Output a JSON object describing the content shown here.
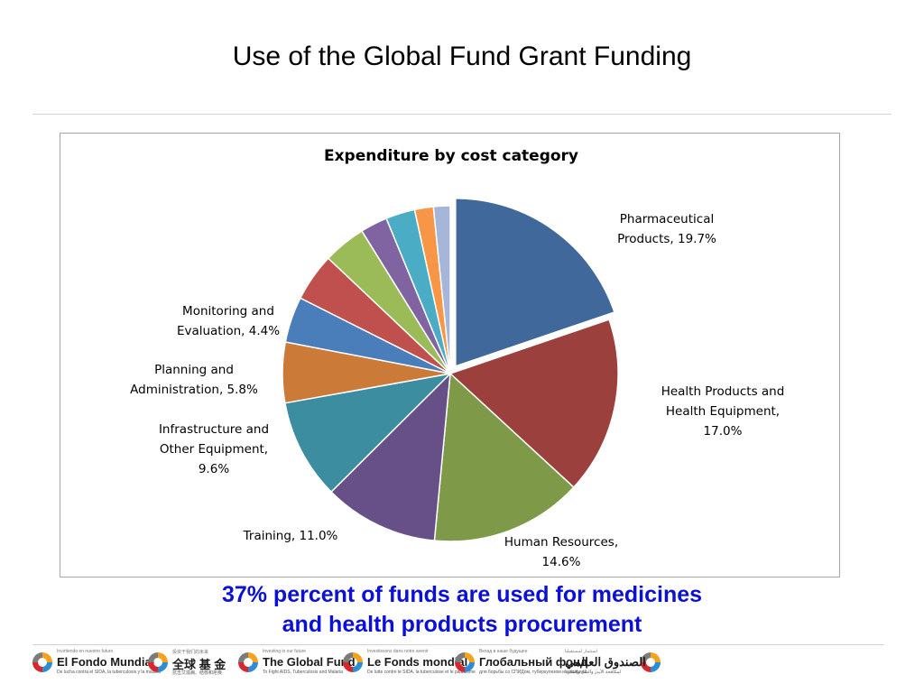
{
  "slide": {
    "title": "Use of the Global Fund Grant Funding",
    "caption_line1": "37% percent of funds are used for medicines",
    "caption_line2": "and health products procurement"
  },
  "chart_data": {
    "type": "pie",
    "title": "Expenditure by cost category",
    "slices": [
      {
        "label": "Pharmaceutical Products",
        "value": 19.7,
        "label_lines": [
          "Pharmaceutical",
          "Products, 19.7%"
        ],
        "color": "#41689b",
        "exploded": true
      },
      {
        "label": "Health Products and Health Equipment",
        "value": 17.0,
        "label_lines": [
          "Health Products and",
          "Health Equipment,",
          "17.0%"
        ],
        "color": "#9c403d",
        "exploded": false
      },
      {
        "label": "Human Resources",
        "value": 14.6,
        "label_lines": [
          "Human Resources,",
          "14.6%"
        ],
        "color": "#7e9a48",
        "exploded": false
      },
      {
        "label": "Training",
        "value": 11.0,
        "label_lines": [
          "Training, 11.0%"
        ],
        "color": "#675088",
        "exploded": false
      },
      {
        "label": "Infrastructure and Other Equipment",
        "value": 9.6,
        "label_lines": [
          "Infrastructure and",
          "Other Equipment,",
          "9.6%"
        ],
        "color": "#3c8da0",
        "exploded": false
      },
      {
        "label": "Planning and Administration",
        "value": 5.8,
        "label_lines": [
          "Planning and",
          "Administration, 5.8%"
        ],
        "color": "#cc7a38",
        "exploded": false
      },
      {
        "label": "Monitoring and Evaluation",
        "value": 4.4,
        "label_lines": [
          "Monitoring and",
          "Evaluation, 4.4%"
        ],
        "color": "#4a7ebb",
        "exploded": false
      },
      {
        "label": "",
        "value": 4.6,
        "label_lines": [],
        "color": "#c0504d",
        "exploded": false
      },
      {
        "label": "",
        "value": 4.1,
        "label_lines": [],
        "color": "#9bbb59",
        "exploded": false
      },
      {
        "label": "",
        "value": 2.6,
        "label_lines": [],
        "color": "#8064a2",
        "exploded": false
      },
      {
        "label": "",
        "value": 2.8,
        "label_lines": [],
        "color": "#4bacc6",
        "exploded": false
      },
      {
        "label": "",
        "value": 1.8,
        "label_lines": [],
        "color": "#f79646",
        "exploded": false
      },
      {
        "label": "",
        "value": 1.6,
        "label_lines": [],
        "color": "#a5b6d8",
        "exploded": false
      }
    ]
  },
  "footer_logos": [
    {
      "tagline": "Invirtiendo en nuestro futuro",
      "name": "El Fondo Mundial",
      "sub": "De lucha contra el SIDA, la tuberculosis y la malaria",
      "icon": "global-fund-swirl-icon"
    },
    {
      "tagline": "投资于我们的未来",
      "name": "全球 基 金",
      "sub": "抗击艾滋病、结核和疟疾",
      "icon": "global-fund-swirl-icon"
    },
    {
      "tagline": "Investing in our future",
      "name": "The Global Fund",
      "sub": "To Fight AIDS, Tuberculosis and Malaria",
      "icon": "global-fund-swirl-icon"
    },
    {
      "tagline": "Investissons dans notre avenir",
      "name": "Le Fonds mondial",
      "sub": "De lutte contre le SIDA, la tuberculose et le paludisme",
      "icon": "global-fund-swirl-icon"
    },
    {
      "tagline": "Вклад в наше будущее",
      "name": "Глобальный фонд",
      "sub": "для борьбы со СПИДом, туберкулезом и малярией",
      "icon": "global-fund-swirl-icon"
    },
    {
      "tagline": "استثمار لمستقبلنا",
      "name": "الصندوق العالمي",
      "sub": "لمكافحة الأيدز والسل والملاريا",
      "icon": "global-fund-swirl-icon"
    }
  ]
}
